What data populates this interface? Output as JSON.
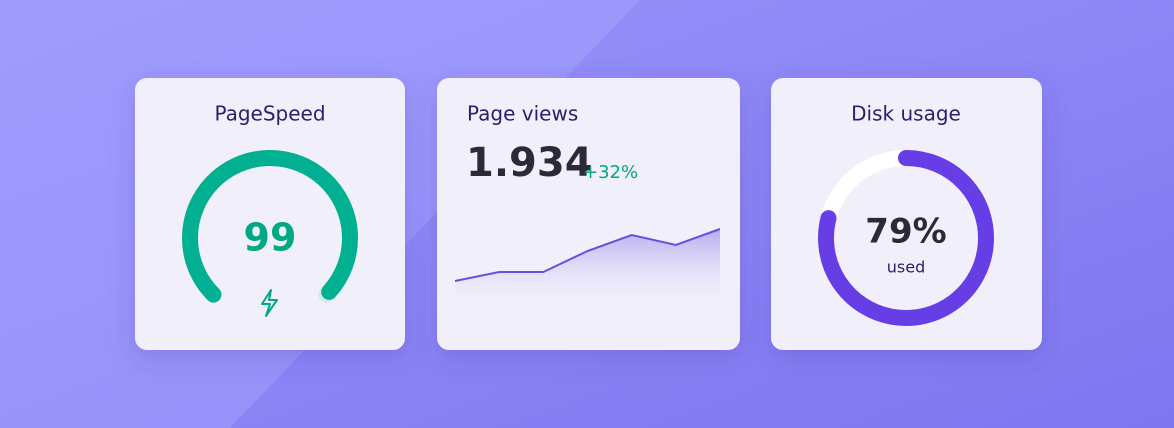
{
  "pagespeed": {
    "title": "PageSpeed",
    "score": 99
  },
  "page_views": {
    "title": "Page views",
    "total": "1.934",
    "change": {
      "value": 32,
      "label": "+32%"
    },
    "trend": [
      19,
      28,
      28,
      49,
      65,
      55,
      71
    ]
  },
  "disk_usage": {
    "title": "Disk usage",
    "used": {
      "value": 79,
      "label": "79%"
    },
    "caption": "used"
  }
}
